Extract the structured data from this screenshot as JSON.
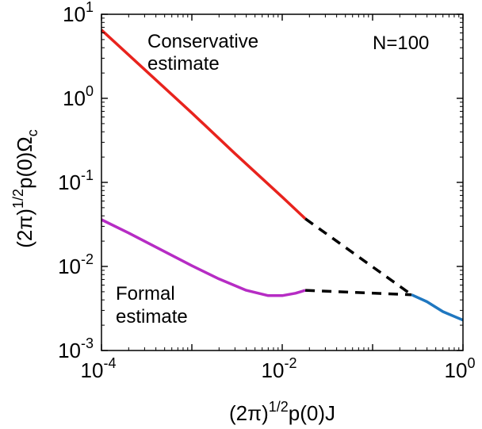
{
  "chart_data": {
    "type": "line",
    "xscale": "log",
    "yscale": "log",
    "xlim": [
      0.0001,
      1
    ],
    "ylim": [
      0.001,
      10
    ],
    "xlabel": {
      "base": "(2",
      "pi": "π",
      "close": ")",
      "exp": "1/2",
      "tail": "p(0)J"
    },
    "ylabel": {
      "base": "(2",
      "pi": "π",
      "close": ")",
      "exp": "1/2",
      "tail": "p(0)",
      "omega": "Ω",
      "sub": "c"
    },
    "xticks": [
      {
        "value": 0.0001,
        "base": "10",
        "exp": "-4"
      },
      {
        "value": 0.01,
        "base": "10",
        "exp": "-2"
      },
      {
        "value": 1,
        "base": "10",
        "exp": "0"
      }
    ],
    "yticks": [
      {
        "value": 0.001,
        "base": "10",
        "exp": "-3"
      },
      {
        "value": 0.01,
        "base": "10",
        "exp": "-2"
      },
      {
        "value": 0.1,
        "base": "10",
        "exp": "-1"
      },
      {
        "value": 1,
        "base": "10",
        "exp": "0"
      },
      {
        "value": 10,
        "base": "10",
        "exp": "1"
      }
    ],
    "annotations": {
      "conservative_line1": "Conservative",
      "conservative_line2": "estimate",
      "formal_line1": "Formal",
      "formal_line2": "estimate",
      "n_label": "N=100"
    },
    "series": [
      {
        "color": "#e8231d",
        "style": "solid",
        "x": [
          0.0001,
          0.0003,
          0.001,
          0.003,
          0.01,
          0.018
        ],
        "y": [
          6.5,
          2.2,
          0.67,
          0.22,
          0.067,
          0.037
        ]
      },
      {
        "color": "#b62cc4",
        "style": "solid",
        "x": [
          0.0001,
          0.0002,
          0.0005,
          0.001,
          0.002,
          0.004,
          0.007,
          0.01,
          0.014,
          0.018
        ],
        "y": [
          0.036,
          0.025,
          0.015,
          0.0102,
          0.0071,
          0.0052,
          0.0045,
          0.0045,
          0.0048,
          0.0052
        ]
      },
      {
        "color": "#000000",
        "style": "dashed",
        "x": [
          0.018,
          0.27
        ],
        "y": [
          0.037,
          0.0046
        ]
      },
      {
        "color": "#000000",
        "style": "dashed",
        "x": [
          0.018,
          0.27
        ],
        "y": [
          0.0052,
          0.0046
        ]
      },
      {
        "color": "#1f77c0",
        "style": "solid",
        "x": [
          0.27,
          0.4,
          0.6,
          1.0
        ],
        "y": [
          0.0046,
          0.0038,
          0.0029,
          0.0023
        ]
      }
    ]
  }
}
